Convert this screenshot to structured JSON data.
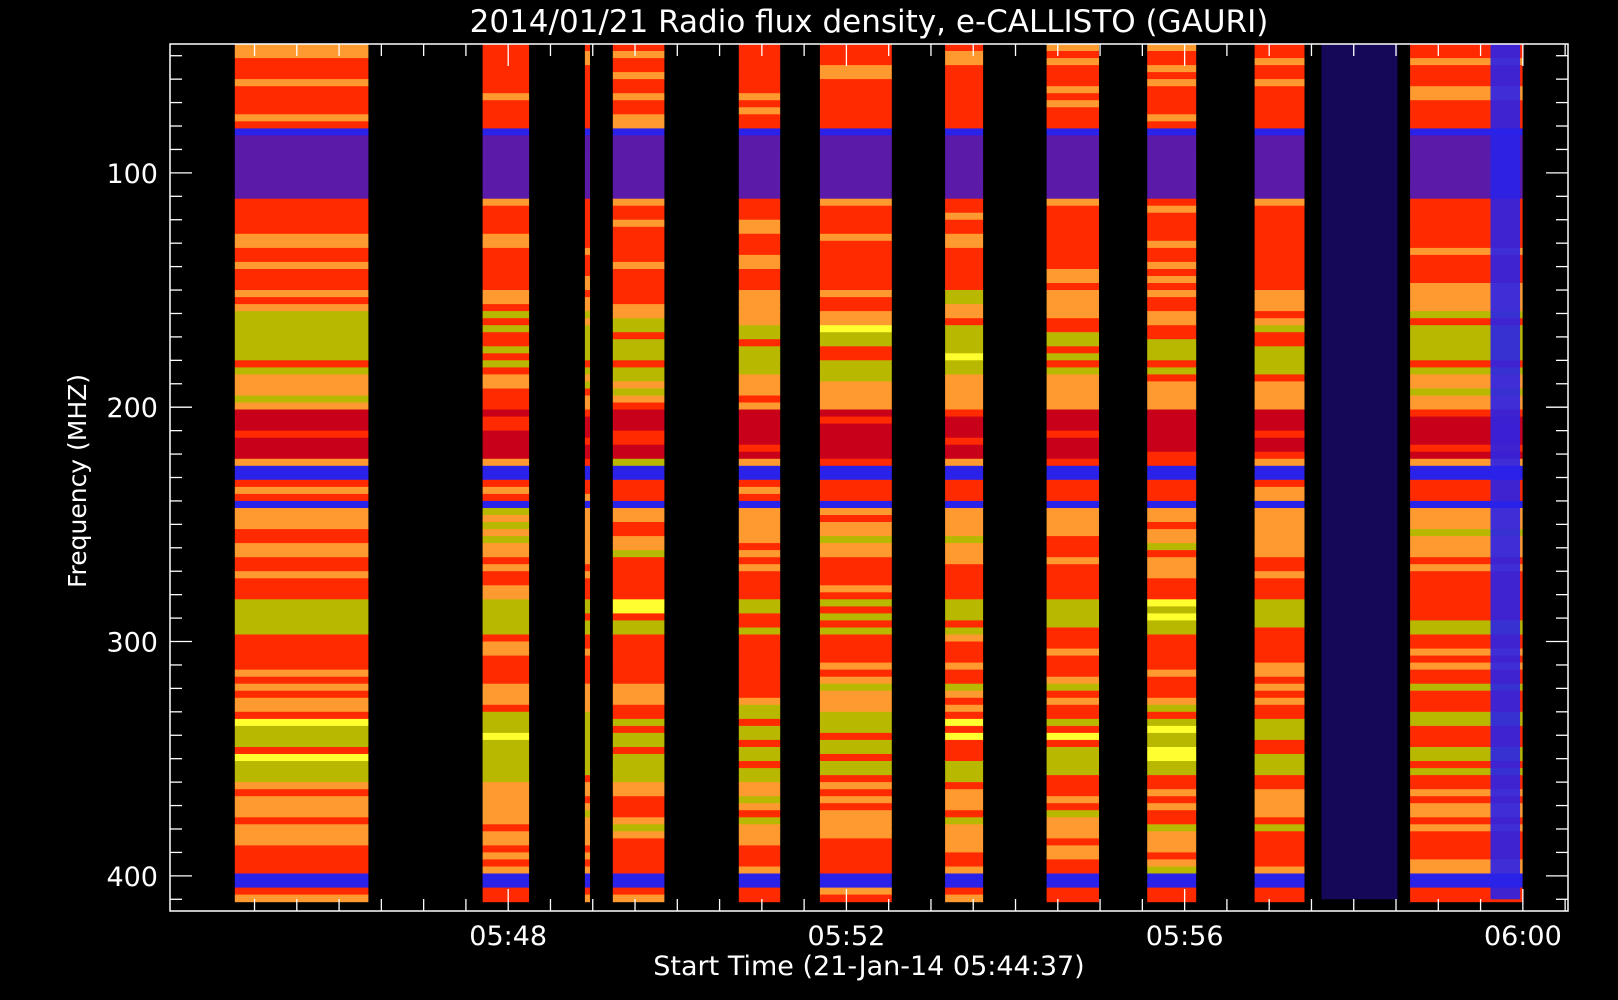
{
  "chart_data": {
    "type": "heatmap",
    "title": "2014/01/21  Radio flux density, e-CALLISTO (GAURI)",
    "xlabel": "Start Time (21-Jan-14 05:44:37)",
    "ylabel": "Frequency (MHZ)",
    "x_axis": {
      "unit": "minutes after 05:44:37",
      "range_min": [
        -0.6167,
        15.917
      ],
      "tick_labels": [
        "05:48",
        "05:52",
        "05:56",
        "06:00"
      ],
      "tick_values_min": [
        3.383,
        7.383,
        11.383,
        15.383
      ]
    },
    "y_axis": {
      "unit": "MHz",
      "range": [
        45,
        415
      ],
      "inverted": true,
      "tick_labels": [
        "100",
        "200",
        "300",
        "400"
      ],
      "tick_values": [
        100,
        200,
        300,
        400
      ]
    },
    "data_extent": {
      "t_min": [
        0.15,
        15.38
      ],
      "f_mhz": [
        45,
        410
      ]
    },
    "colormap": [
      "#000000",
      "#1a0a6e",
      "#5b1aa8",
      "#2a22e8",
      "#c8001a",
      "#ff2a00",
      "#ff9a30",
      "#b8b800",
      "#ffff30"
    ],
    "grid": false,
    "legend": "none",
    "active_bands_min": [
      [
        0.15,
        1.73
      ],
      [
        3.08,
        3.63
      ],
      [
        4.29,
        4.35
      ],
      [
        4.62,
        5.23
      ],
      [
        6.11,
        6.6
      ],
      [
        7.07,
        7.92
      ],
      [
        8.55,
        9.0
      ],
      [
        9.75,
        10.37
      ],
      [
        10.94,
        11.52
      ],
      [
        12.21,
        12.8
      ],
      [
        14.05,
        15.38
      ]
    ]
  }
}
